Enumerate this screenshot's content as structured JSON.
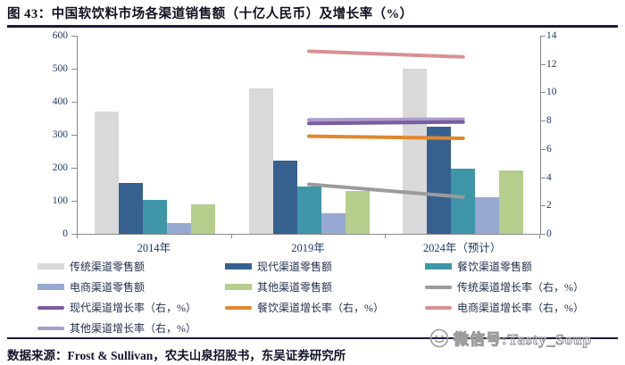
{
  "figure": {
    "title": "图 43：中国软饮料市场各渠道销售额（十亿人民币）及增长率（%）",
    "source": "数据来源：Frost & Sullivan，农夫山泉招股书，东吴证券研究所"
  },
  "watermark": {
    "icon": "wechat-smiley-icon",
    "text": "微信号:Tasty_Soup",
    "color": "#9c9c9c"
  },
  "chart_data": {
    "type": "bar+line combo, bars on left axis, lines on right axis",
    "categories": [
      "2014年",
      "2019年",
      "2024年（预计）"
    ],
    "left_axis": {
      "min": 0,
      "max": 600,
      "step": 100
    },
    "right_axis": {
      "min": 0,
      "max": 14,
      "step": 2
    },
    "grid": "off",
    "legend_position": "bottom, 3 columns",
    "bar_series": [
      {
        "name": "传统渠道零售额",
        "color": "#d9d9d9",
        "values": [
          370,
          440,
          500
        ]
      },
      {
        "name": "现代渠道零售额",
        "color": "#36618f",
        "values": [
          154,
          222,
          325
        ]
      },
      {
        "name": "餐饮渠道零售额",
        "color": "#3e96a8",
        "values": [
          102,
          144,
          196
        ]
      },
      {
        "name": "电商渠道零售额",
        "color": "#97a9d1",
        "values": [
          33,
          62,
          110
        ]
      },
      {
        "name": "其他渠道零售额",
        "color": "#b5ce8c",
        "values": [
          89,
          130,
          192
        ]
      }
    ],
    "line_series": [
      {
        "name": "传统渠道增长率（右，%）",
        "color": "#9b9b9b",
        "values": [
          null,
          3.5,
          2.6
        ]
      },
      {
        "name": "现代渠道增长率（右，%）",
        "color": "#7a5ca1",
        "values": [
          null,
          7.8,
          7.9
        ]
      },
      {
        "name": "餐饮渠道增长率（右，%）",
        "color": "#e0872f",
        "values": [
          null,
          6.9,
          6.75
        ]
      },
      {
        "name": "电商渠道增长率（右，%）",
        "color": "#d99093",
        "values": [
          null,
          12.9,
          12.5
        ]
      },
      {
        "name": "其他渠道增长率（右，%）",
        "color": "#ab9cc9",
        "values": [
          null,
          8.05,
          8.1
        ]
      }
    ],
    "line_draw_order": [
      0,
      4,
      1,
      2,
      3
    ],
    "legend_order_bars": [
      0,
      1,
      2,
      3,
      4
    ],
    "legend_order_lines": [
      0,
      1,
      2,
      3,
      4
    ]
  }
}
